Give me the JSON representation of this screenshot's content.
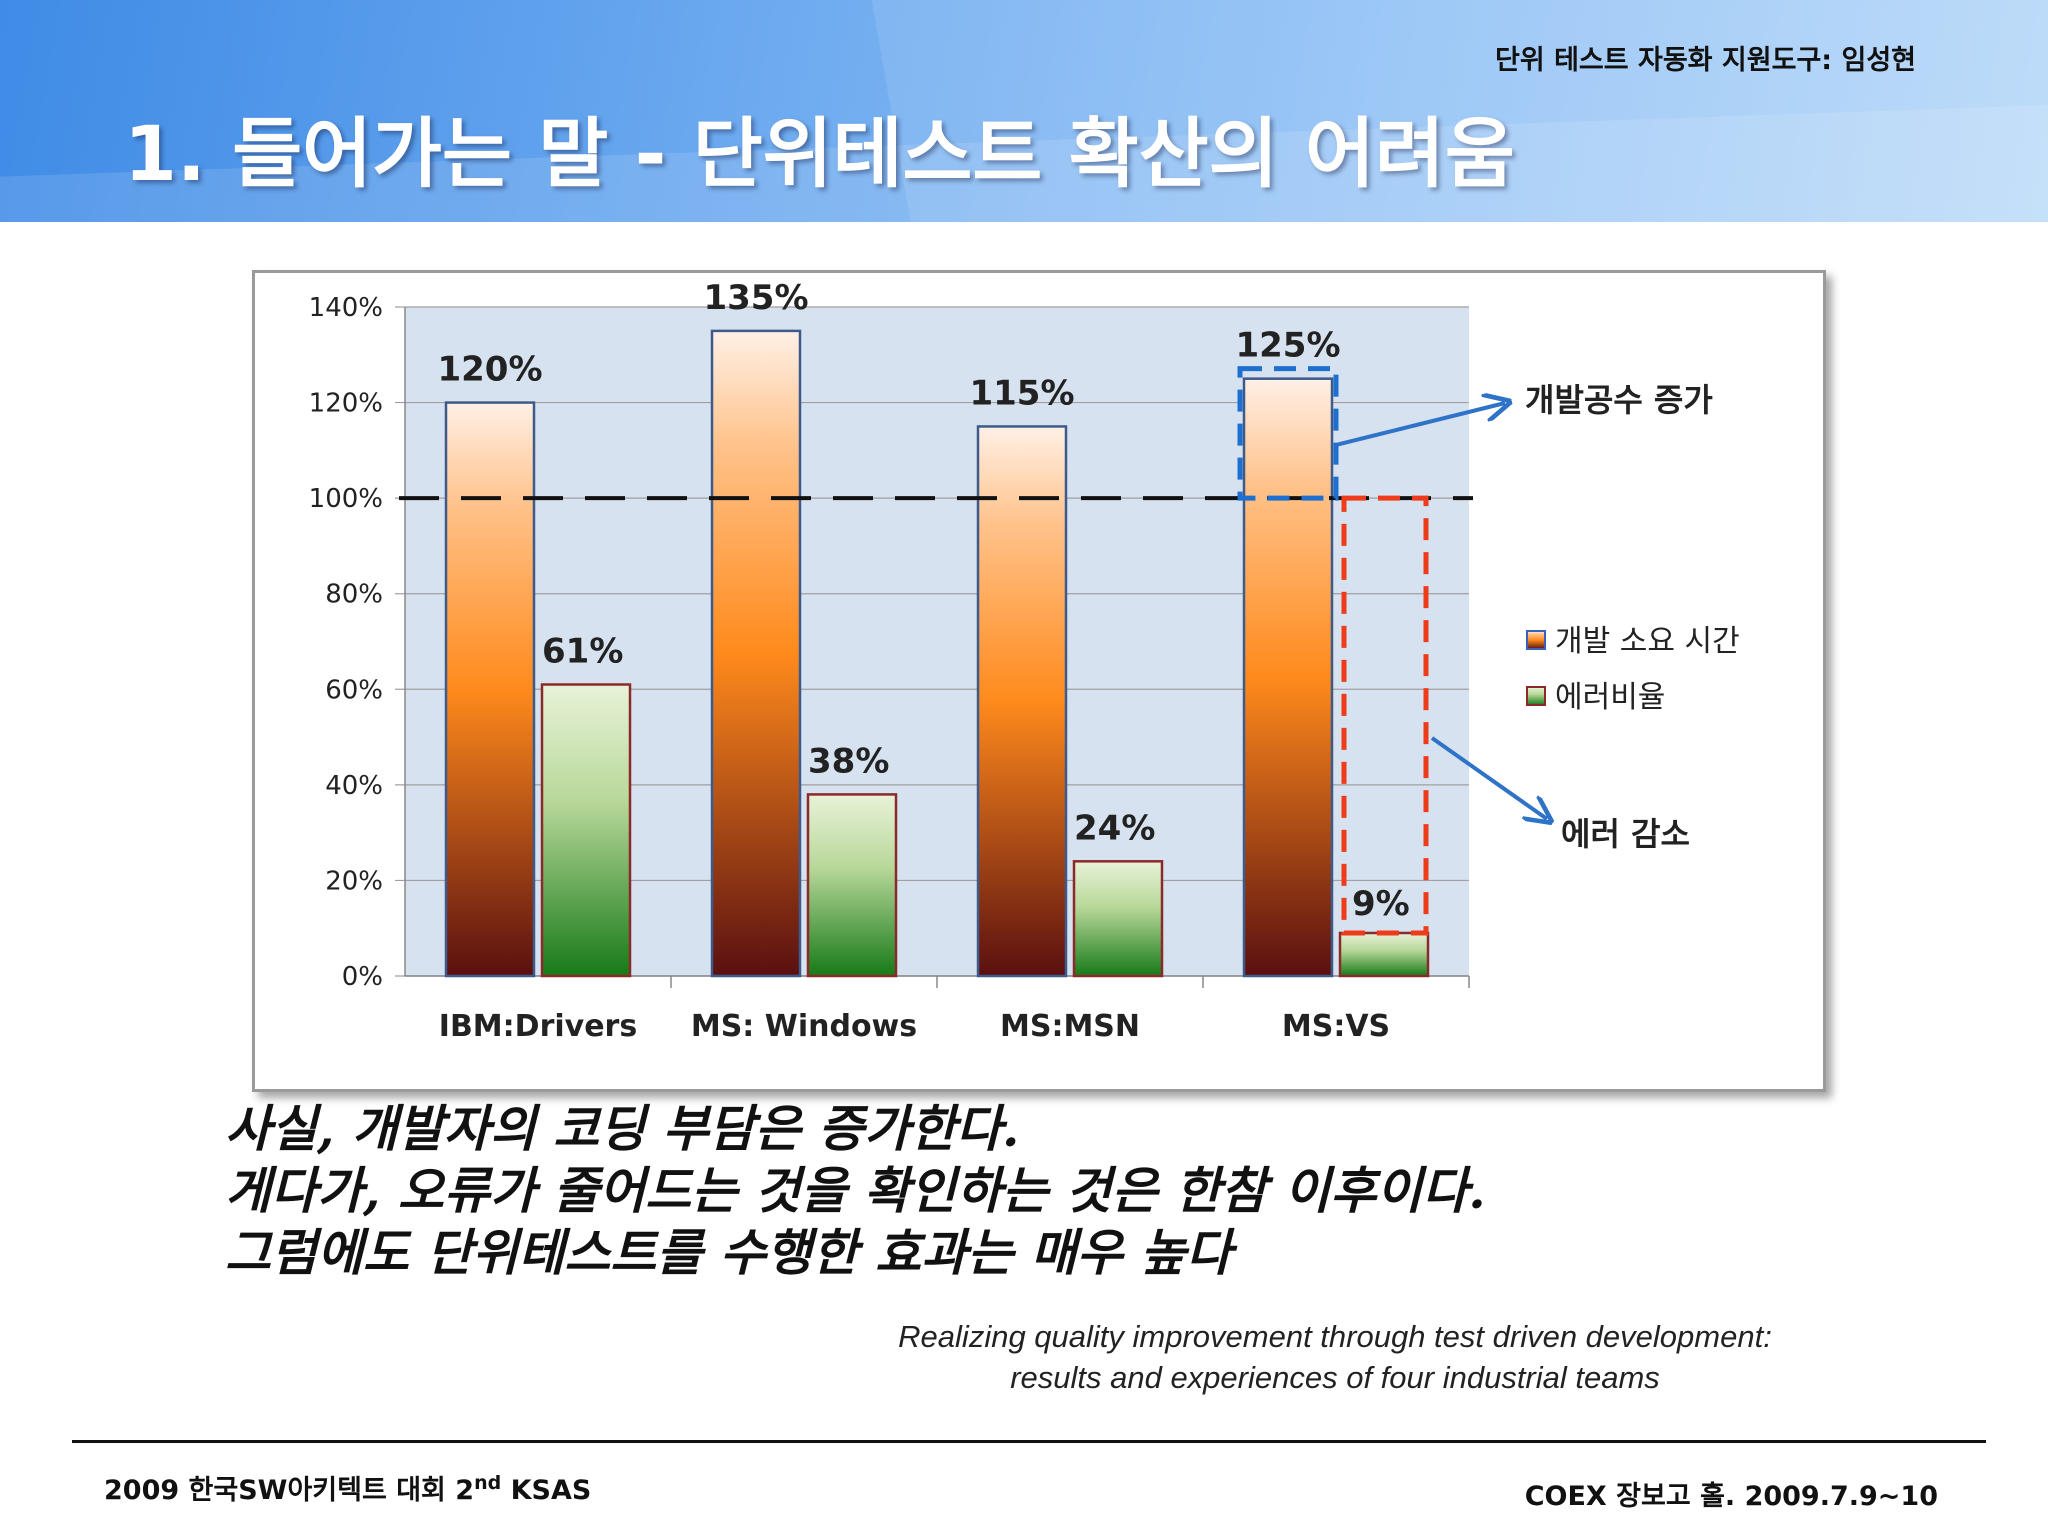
{
  "header": {
    "subtitle": "단위 테스트 자동화 지원도구: 임성현",
    "title": "1. 들어가는 말 - 단위테스트 확산의 어려움"
  },
  "chart_data": {
    "type": "bar",
    "categories": [
      "IBM:Drivers",
      "MS: Windows",
      "MS:MSN",
      "MS:VS"
    ],
    "series": [
      {
        "name": "개발 소요 시간",
        "values": [
          120,
          135,
          115,
          125
        ],
        "labels": [
          "120%",
          "135%",
          "115%",
          "125%"
        ]
      },
      {
        "name": "에러비율",
        "values": [
          61,
          38,
          24,
          9
        ],
        "labels": [
          "61%",
          "38%",
          "24%",
          "9%"
        ]
      }
    ],
    "yticks": [
      "0%",
      "20%",
      "40%",
      "60%",
      "80%",
      "100%",
      "120%",
      "140%"
    ],
    "ylim": [
      0,
      140
    ],
    "reference_line": 100,
    "legend_placement": "right",
    "annotations": {
      "increase": "개발공수 증가",
      "decrease": "에러 감소"
    },
    "colors": {
      "plot_bg": "#d6e2ef",
      "dev_time_top": "#fff0e6",
      "dev_time_mid": "#ff8a1c",
      "dev_time_bottom": "#5a1010",
      "error_top": "#e8f2d8",
      "error_bottom": "#177a17",
      "blue_box": "#1f6fd1",
      "red_box": "#ee3b1a"
    }
  },
  "body": {
    "line1": "사실, 개발자의 코딩 부담은 증가한다.",
    "line2": "게다가, 오류가 줄어드는 것을 확인하는 것은 한참 이후이다.",
    "line3": "그럼에도 단위테스트를 수행한 효과는 매우 높다"
  },
  "reference": {
    "line1": "Realizing quality improvement through test driven development:",
    "line2": "results and experiences  of four industrial teams"
  },
  "footer": {
    "left_main": "2009  한국SW아키텍트 대회 2",
    "left_sup": "nd",
    "left_tail": "  KSAS",
    "right": "COEX 장보고 홀. 2009.7.9~10"
  }
}
